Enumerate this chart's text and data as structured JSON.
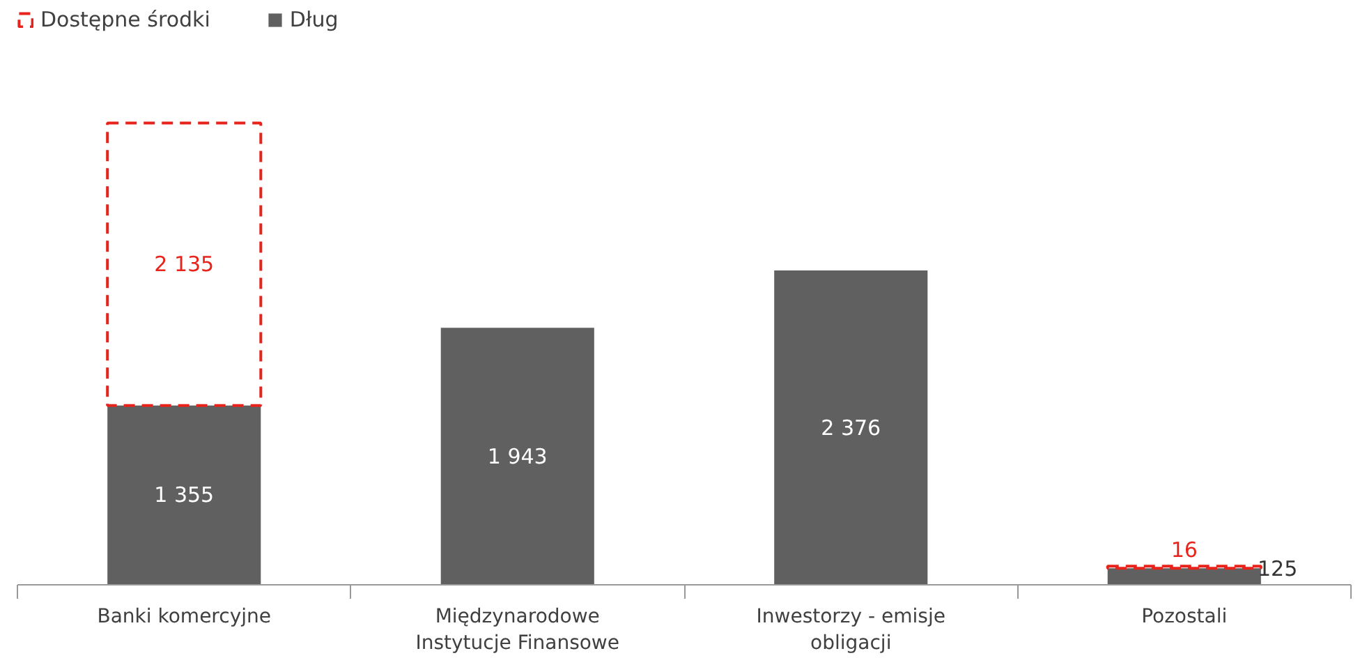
{
  "chart_data": {
    "type": "bar",
    "stacked": true,
    "legend": "top left",
    "categories": [
      "Banki komercyjne",
      "Międzynarodowe Instytucje Finansowe",
      "Inwestorzy - emisje obligacji",
      "Pozostali"
    ],
    "series": [
      {
        "name": "Dług",
        "color": "#606060",
        "values": [
          1355,
          1943,
          2376,
          125
        ],
        "value_labels": [
          "1 355",
          "1 943",
          "2 376",
          "125"
        ]
      },
      {
        "name": "Dostępne środki",
        "color": "#e8231b",
        "line_style": "dashed",
        "values": [
          2135,
          null,
          null,
          16
        ],
        "value_labels": [
          "2 135",
          null,
          null,
          "16"
        ]
      }
    ]
  }
}
